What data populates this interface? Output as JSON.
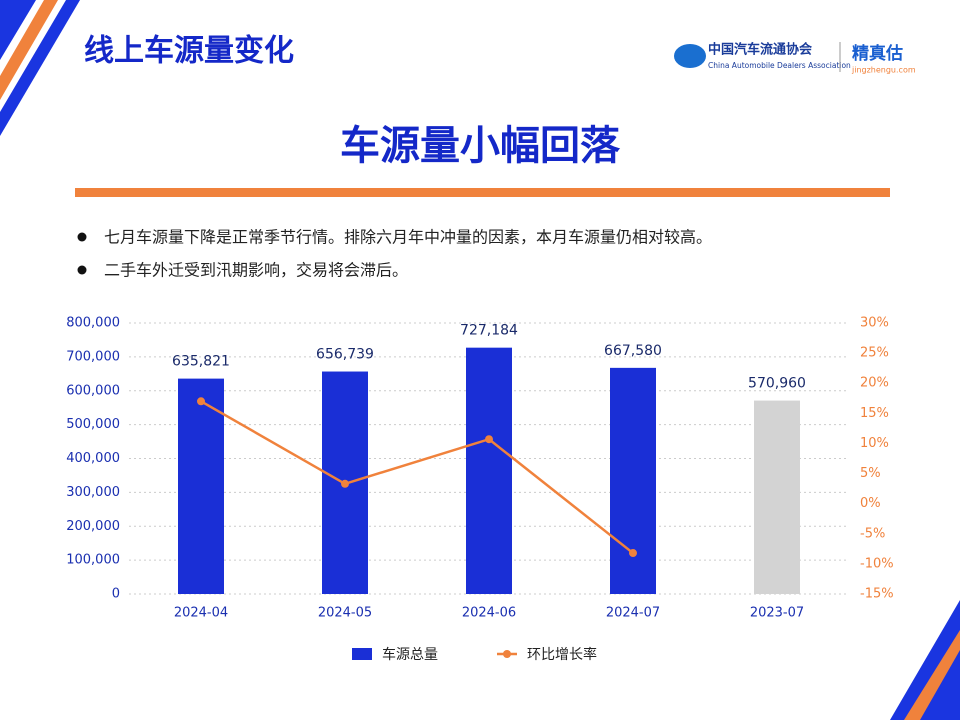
{
  "header": {
    "title": "线上车源量变化",
    "headline": "车源量小幅回落",
    "logo_cn": "中国汽车流通协会",
    "logo_en": "China Automobile Dealers Association",
    "brand": "精真估",
    "brand_url": "jingzhengu.com"
  },
  "bullets": [
    "七月车源量下降是正常季节行情。排除六月年中冲量的因素，本月车源量仍相对较高。",
    "二手车外迁受到汛期影响，交易将会滞后。"
  ],
  "chart_data": {
    "type": "bar",
    "categories": [
      "2024-04",
      "2024-05",
      "2024-06",
      "2024-07",
      "2023-07"
    ],
    "series": [
      {
        "name": "车源总量",
        "type": "bar",
        "color": "#1a2fd6",
        "colors": [
          "#1a2fd6",
          "#1a2fd6",
          "#1a2fd6",
          "#1a2fd6",
          "#d3d3d3"
        ],
        "values": [
          635821,
          656739,
          727184,
          667580,
          570960
        ],
        "value_labels": [
          "635,821",
          "656,739",
          "727,184",
          "667,580",
          "570,960"
        ]
      },
      {
        "name": "环比增长率",
        "type": "line",
        "color": "#f0823c",
        "axis": "y2",
        "values": [
          17.0,
          3.3,
          10.7,
          -8.2,
          null
        ]
      }
    ],
    "ylim": [
      0,
      800000
    ],
    "yticks": [
      0,
      {
        "value": 100000,
        "label": "100,000"
      },
      {
        "value": 200000,
        "label": "200,000"
      },
      {
        "value": 300000,
        "label": "300,000"
      },
      {
        "value": 400000,
        "label": "400,000"
      },
      {
        "value": 500000,
        "label": "500,000"
      },
      {
        "value": 600000,
        "label": "600,000"
      },
      {
        "value": 700000,
        "label": "700,000"
      },
      {
        "value": 800000,
        "label": "800,000"
      }
    ],
    "y2lim": [
      -15,
      30
    ],
    "y2ticks": [
      {
        "value": -15,
        "label": "-15%"
      },
      {
        "value": -10,
        "label": "-10%"
      },
      {
        "value": -5,
        "label": "-5%"
      },
      {
        "value": 0,
        "label": "0%"
      },
      {
        "value": 5,
        "label": "5%"
      },
      {
        "value": 10,
        "label": "10%"
      },
      {
        "value": 15,
        "label": "15%"
      },
      {
        "value": 20,
        "label": "20%"
      },
      {
        "value": 25,
        "label": "25%"
      },
      {
        "value": 30,
        "label": "30%"
      }
    ],
    "grid": true,
    "legend": "bottom"
  }
}
